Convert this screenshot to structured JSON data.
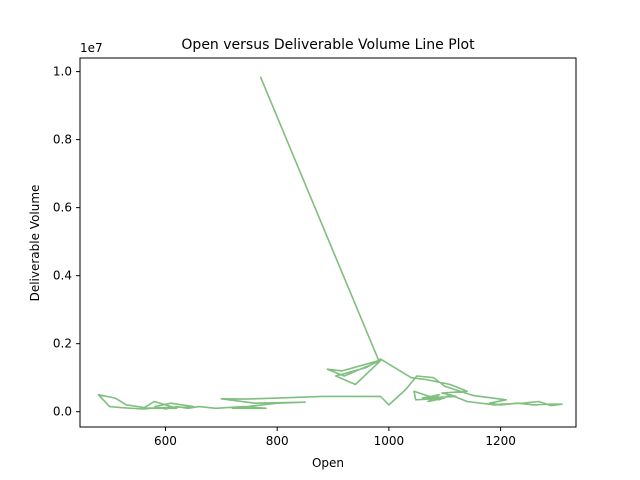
{
  "chart_data": {
    "type": "line",
    "title": "Open versus Deliverable Volume Line Plot",
    "xlabel": "Open",
    "ylabel": "Deliverable Volume",
    "y_offset_label": "1e7",
    "xlim": [
      447,
      1335
    ],
    "ylim": [
      -0.045,
      1.04
    ],
    "y_scale": 10000000,
    "x_ticks": [
      600,
      800,
      1000,
      1200
    ],
    "x_tick_labels": [
      "600",
      "800",
      "1000",
      "1200"
    ],
    "y_ticks": [
      0.0,
      0.2,
      0.4,
      0.6,
      0.8,
      1.0
    ],
    "y_tick_labels": [
      "0.0",
      "0.2",
      "0.4",
      "0.6",
      "0.8",
      "1.0"
    ],
    "grid": false,
    "series": [
      {
        "color": "#7fbf7f",
        "x": [
          770,
          982,
          916,
          890,
          920,
          985,
          940,
          905,
          960,
          985,
          1040,
          1065,
          1110,
          1140,
          1095,
          1120,
          1060,
          1090,
          1070,
          1100,
          1048,
          1045,
          1090,
          1110,
          1140,
          1190,
          1200,
          1240,
          1268,
          1290,
          1310,
          1280,
          1260,
          1230,
          1200,
          1180,
          1210,
          1150,
          1100,
          1080,
          1050,
          1030,
          1000,
          985,
          950,
          880,
          800,
          740,
          700,
          760,
          850,
          800,
          720,
          780,
          740,
          690,
          660,
          640,
          620,
          600,
          590,
          560,
          540,
          520,
          500,
          480,
          510,
          530,
          570,
          620,
          600,
          580,
          560,
          650,
          630,
          610,
          580
        ],
        "y": [
          0.985,
          0.15,
          0.12,
          0.125,
          0.105,
          0.15,
          0.08,
          0.105,
          0.13,
          0.155,
          0.1,
          0.095,
          0.08,
          0.06,
          0.055,
          0.045,
          0.04,
          0.05,
          0.03,
          0.04,
          0.035,
          0.06,
          0.035,
          0.05,
          0.03,
          0.02,
          0.022,
          0.025,
          0.03,
          0.018,
          0.022,
          0.022,
          0.02,
          0.025,
          0.02,
          0.025,
          0.035,
          0.048,
          0.075,
          0.1,
          0.105,
          0.065,
          0.02,
          0.045,
          0.045,
          0.045,
          0.04,
          0.037,
          0.038,
          0.025,
          0.028,
          0.025,
          0.01,
          0.01,
          0.015,
          0.01,
          0.015,
          0.01,
          0.015,
          0.008,
          0.012,
          0.008,
          0.01,
          0.012,
          0.015,
          0.05,
          0.04,
          0.02,
          0.01,
          0.01,
          0.02,
          0.03,
          0.01,
          0.015,
          0.02,
          0.025,
          0.015
        ]
      }
    ]
  }
}
